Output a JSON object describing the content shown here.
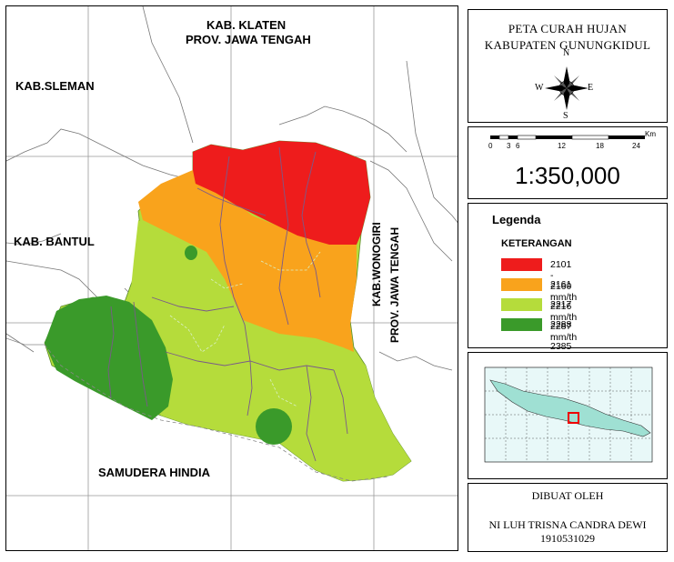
{
  "map": {
    "labels": {
      "klaten_line1": "KAB. KLATEN",
      "klaten_line2": "PROV. JAWA TENGAH",
      "sleman": "KAB.SLEMAN",
      "bantul": "KAB. BANTUL",
      "wonogiri_line1": "KAB.WONOGIRI",
      "wonogiri_line2": "PROV. JAWA TENGAH",
      "ocean": "SAMUDERA HINDIA"
    },
    "colors": {
      "zone1": "#ee1c1c",
      "zone2": "#f9a31c",
      "zone3": "#b5dc3b",
      "zone4": "#3a9a2a"
    }
  },
  "panel": {
    "title_line1": "PETA CURAH HUJAN",
    "title_line2": "KABUPATEN GUNUNGKIDUL",
    "compass": {
      "n": "N",
      "s": "S",
      "e": "E",
      "w": "W"
    },
    "scalebar": {
      "unit": "Km",
      "ticks": [
        "0",
        "3",
        "6",
        "12",
        "18",
        "24"
      ]
    },
    "scale_text": "1:350,000",
    "legend_title": "Legenda",
    "legend_subtitle": "KETERANGAN",
    "legend_items": [
      {
        "label": "2101 - 2160 mm/th",
        "color": "#ee1c1c"
      },
      {
        "label": "2161 - 2216 mm/th",
        "color": "#f9a31c"
      },
      {
        "label": "2217 - 2287 mm/th",
        "color": "#b5dc3b"
      },
      {
        "label": "2288 - 2385 mm/th",
        "color": "#3a9a2a"
      }
    ],
    "made_by_label": "DIBUAT OLEH",
    "author_name": "NI LUH TRISNA CANDRA DEWI",
    "author_id": "1910531029"
  }
}
